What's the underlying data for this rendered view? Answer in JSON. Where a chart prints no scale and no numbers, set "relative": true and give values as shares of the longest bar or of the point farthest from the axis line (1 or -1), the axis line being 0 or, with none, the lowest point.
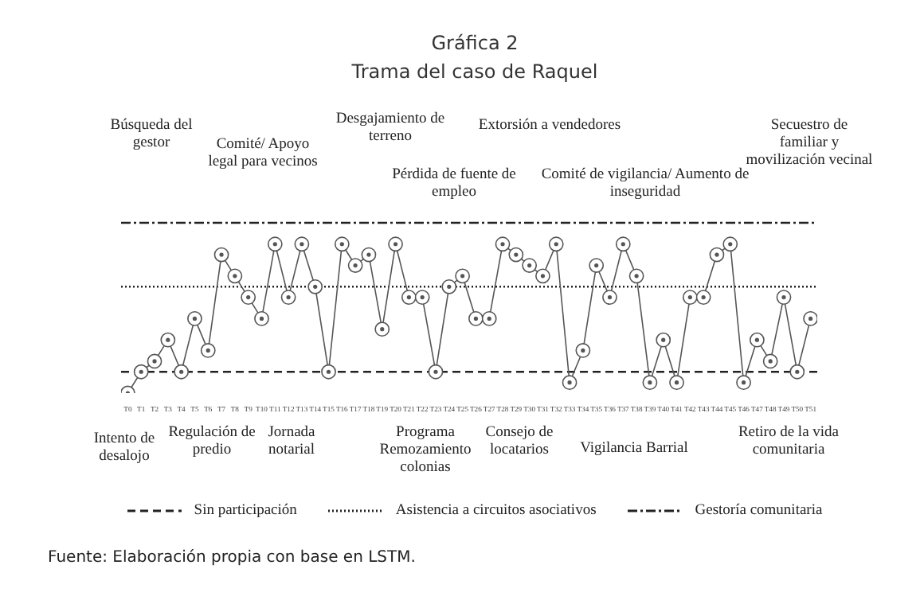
{
  "chart_data": {
    "type": "line",
    "title": "Gráfica 2",
    "subtitle": "Trama del caso de Raquel",
    "relative": true,
    "marker": "circle",
    "line_style": "solid",
    "legend": "bottom",
    "categories": [
      "T0",
      "T1",
      "T2",
      "T3",
      "T4",
      "T5",
      "T6",
      "T7",
      "T8",
      "T9",
      "T10",
      "T11",
      "T12",
      "T13",
      "T14",
      "T15",
      "T16",
      "T17",
      "T18",
      "T19",
      "T20",
      "T21",
      "T22",
      "T23",
      "T24",
      "T25",
      "T26",
      "T27",
      "T28",
      "T29",
      "T30",
      "T31",
      "T32",
      "T33",
      "T34",
      "T35",
      "T36",
      "T37",
      "T38",
      "T39",
      "T40",
      "T41",
      "T42",
      "T43",
      "T44",
      "T45",
      "T46",
      "T47",
      "T48",
      "T49",
      "T50",
      "T51"
    ],
    "series": [
      {
        "color": "#555555",
        "values": [
          0,
          0.143,
          0.214,
          0.357,
          0.143,
          0.5,
          0.286,
          0.929,
          0.786,
          0.643,
          0.5,
          1,
          0.643,
          1,
          0.714,
          0.143,
          1,
          0.857,
          0.929,
          0.429,
          1,
          0.643,
          0.643,
          0.143,
          0.714,
          0.786,
          0.5,
          0.5,
          1,
          0.929,
          0.857,
          0.786,
          1,
          0.071,
          0.286,
          0.857,
          0.643,
          1,
          0.786,
          0.071,
          0.357,
          0.071,
          0.643,
          0.643,
          0.929,
          1,
          0.071,
          0.357,
          0.214,
          0.643,
          0.143,
          0.5
        ]
      }
    ],
    "ref_lines": [
      {
        "axis": "y",
        "value": 0.143,
        "label": "Sin participación",
        "line_style": "dashed",
        "color": "#222222"
      },
      {
        "axis": "y",
        "value": 0.714,
        "label": "Asistencia a circuitos asociativos",
        "line_style": "dotted",
        "color": "#222222"
      },
      {
        "axis": "y",
        "value": 1.143,
        "label": "Gestoría comunitaria",
        "line_style": "dashdot",
        "color": "#222222"
      }
    ],
    "annotations": [
      "Búsqueda del gestor",
      "Comité/ Apoyo legal para vecinos",
      "Desgajamiento de terreno",
      "Pérdida de fuente de empleo",
      "Extorsión a vendedores",
      "Comité de vigilancia/ Aumento de inseguridad",
      "Secuestro de familiar y movilización vecinal",
      "Intento de desalojo",
      "Regulación de predio",
      "Jornada notarial",
      "Programa Remozamiento colonias",
      "Consejo de locatarios",
      "Vigilancia Barrial",
      "Retiro de la vida comunitaria",
      "Fuente: Elaboración propia con base en LSTM."
    ]
  }
}
